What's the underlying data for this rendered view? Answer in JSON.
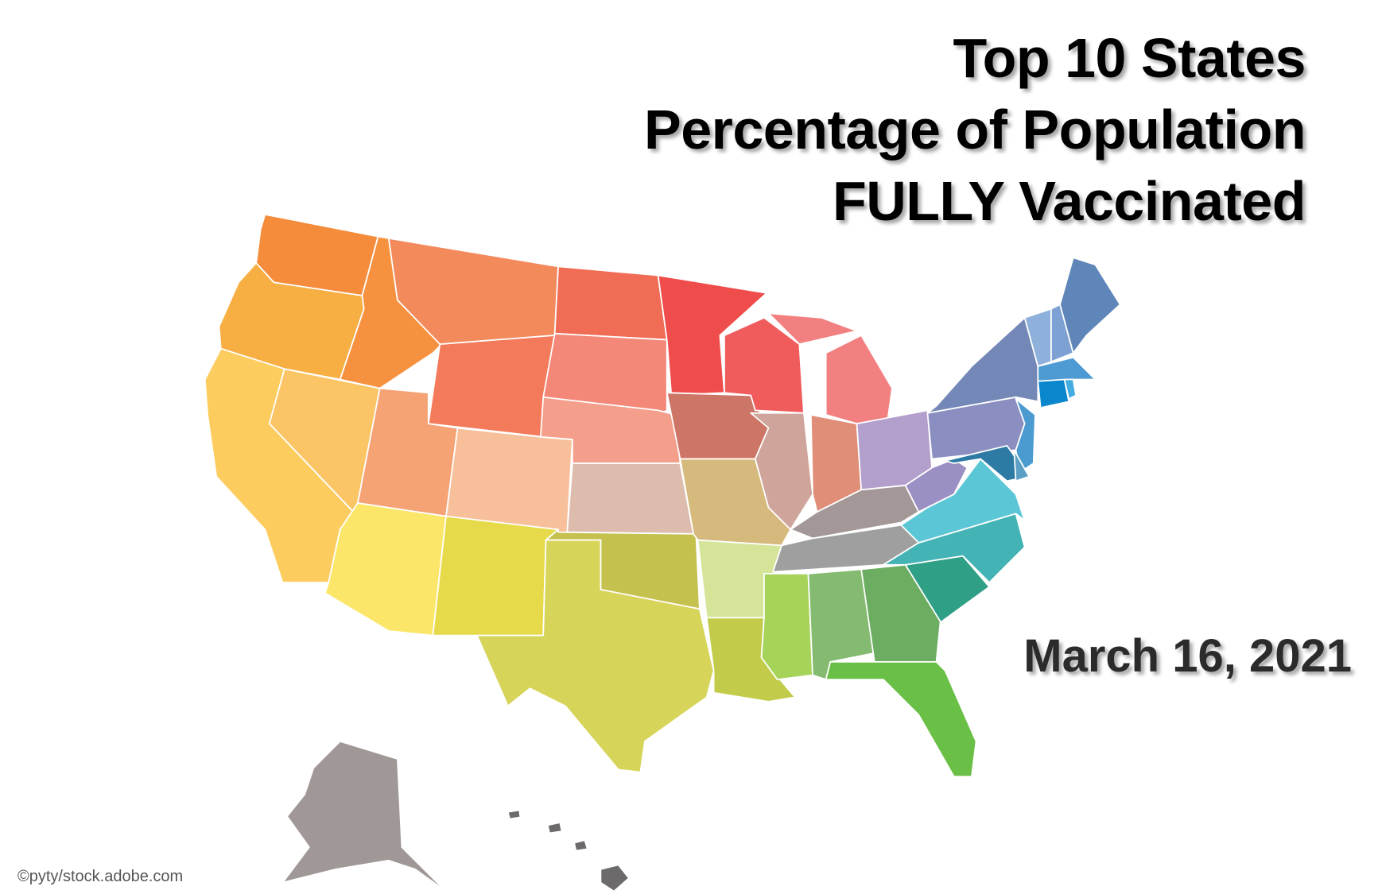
{
  "title": {
    "lines": [
      "Top 10 States",
      "Percentage of Population",
      "FULLY Vaccinated"
    ]
  },
  "date": "March 16, 2021",
  "credit": "©pyty/stock.adobe.com",
  "state_colors": {
    "WA": "#f48c3c",
    "OR": "#f7ae42",
    "CA": "#fccc5e",
    "NV": "#fbc566",
    "ID": "#f6913f",
    "MT": "#f38a5c",
    "WY": "#f37a5a",
    "UT": "#f5a275",
    "CO": "#f8c09a",
    "AZ": "#fbe66a",
    "NM": "#e6da4a",
    "ND": "#f06c55",
    "SD": "#f38878",
    "NE": "#f49f8c",
    "KS": "#ddbcae",
    "OK": "#c4c14e",
    "TX": "#d7d45a",
    "MN": "#ef4c4c",
    "IA": "#cd7566",
    "MO": "#d6b97c",
    "AR": "#d4e59a",
    "LA": "#c2cc4a",
    "WI": "#f05c5c",
    "MI": "#f28080",
    "IL": "#cfa49a",
    "IN": "#e08e78",
    "OH": "#b39fcc",
    "KY": "#a39897",
    "TN": "#9e9f9e",
    "MS": "#a6d35a",
    "AL": "#84bb70",
    "GA": "#6cad62",
    "FL": "#6abf46",
    "SC": "#2f9f86",
    "NC": "#43b3b5",
    "VA": "#5bc6d6",
    "WV": "#9b8fc3",
    "PA": "#8a8ec0",
    "NY": "#7488b8",
    "NJ": "#4b9bd0",
    "MD": "#2d7aa5",
    "DE": "#5c9fc4",
    "VT": "#8eb1dc",
    "NH": "#7da1d2",
    "ME": "#5e86b8",
    "MA": "#4e9ad2",
    "CT": "#0a86cc",
    "RI": "#45ace0",
    "AK": "#a09896",
    "HI": "#6c6a6a"
  }
}
